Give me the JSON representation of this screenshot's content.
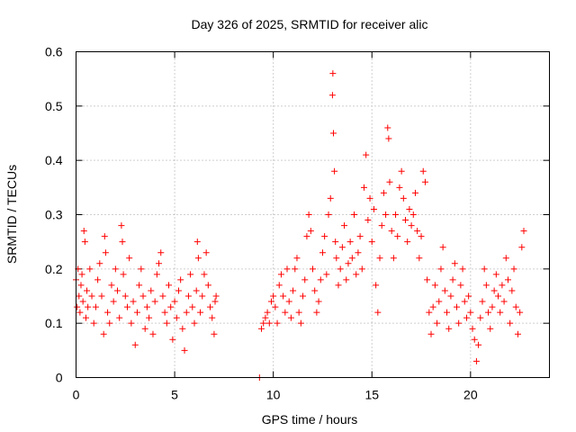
{
  "chart_data": {
    "type": "scatter",
    "title": "Day 326 of 2025, SRMTID for receiver alic",
    "xlabel": "GPS time / hours",
    "ylabel": "SRMTID / TECUs",
    "xlim": [
      0,
      24
    ],
    "ylim": [
      0,
      0.6
    ],
    "xticks": [
      0,
      5,
      10,
      15,
      20
    ],
    "yticks": [
      0,
      0.1,
      0.2,
      0.3,
      0.4,
      0.5,
      0.6
    ],
    "xtick_labels": [
      "0",
      "5",
      "10",
      "15",
      "20"
    ],
    "ytick_labels": [
      "0",
      "0.1",
      "0.2",
      "0.3",
      "0.4",
      "0.5",
      "0.6"
    ],
    "grid": true,
    "marker": "plus",
    "color": "#ff0000",
    "series": [
      {
        "name": "SRMTID",
        "points": [
          [
            0.0,
            0.18
          ],
          [
            0.05,
            0.13
          ],
          [
            0.1,
            0.2
          ],
          [
            0.15,
            0.15
          ],
          [
            0.2,
            0.12
          ],
          [
            0.25,
            0.17
          ],
          [
            0.3,
            0.19
          ],
          [
            0.35,
            0.14
          ],
          [
            0.4,
            0.27
          ],
          [
            0.45,
            0.25
          ],
          [
            0.5,
            0.11
          ],
          [
            0.55,
            0.16
          ],
          [
            0.6,
            0.13
          ],
          [
            0.7,
            0.2
          ],
          [
            0.8,
            0.15
          ],
          [
            0.9,
            0.1
          ],
          [
            1.0,
            0.13
          ],
          [
            1.1,
            0.18
          ],
          [
            1.2,
            0.21
          ],
          [
            1.3,
            0.15
          ],
          [
            1.4,
            0.08
          ],
          [
            1.45,
            0.26
          ],
          [
            1.5,
            0.23
          ],
          [
            1.6,
            0.12
          ],
          [
            1.7,
            0.1
          ],
          [
            1.8,
            0.17
          ],
          [
            1.9,
            0.14
          ],
          [
            2.0,
            0.2
          ],
          [
            2.1,
            0.16
          ],
          [
            2.2,
            0.11
          ],
          [
            2.3,
            0.28
          ],
          [
            2.35,
            0.25
          ],
          [
            2.4,
            0.19
          ],
          [
            2.5,
            0.15
          ],
          [
            2.6,
            0.13
          ],
          [
            2.7,
            0.22
          ],
          [
            2.8,
            0.1
          ],
          [
            2.9,
            0.14
          ],
          [
            3.0,
            0.06
          ],
          [
            3.1,
            0.12
          ],
          [
            3.2,
            0.17
          ],
          [
            3.3,
            0.2
          ],
          [
            3.4,
            0.15
          ],
          [
            3.5,
            0.09
          ],
          [
            3.6,
            0.13
          ],
          [
            3.7,
            0.11
          ],
          [
            3.8,
            0.16
          ],
          [
            3.9,
            0.08
          ],
          [
            4.0,
            0.14
          ],
          [
            4.1,
            0.19
          ],
          [
            4.2,
            0.21
          ],
          [
            4.3,
            0.23
          ],
          [
            4.4,
            0.15
          ],
          [
            4.5,
            0.12
          ],
          [
            4.6,
            0.1
          ],
          [
            4.7,
            0.17
          ],
          [
            4.8,
            0.13
          ],
          [
            4.9,
            0.07
          ],
          [
            5.0,
            0.14
          ],
          [
            5.1,
            0.11
          ],
          [
            5.2,
            0.16
          ],
          [
            5.3,
            0.18
          ],
          [
            5.4,
            0.09
          ],
          [
            5.5,
            0.05
          ],
          [
            5.6,
            0.12
          ],
          [
            5.7,
            0.15
          ],
          [
            5.8,
            0.19
          ],
          [
            5.9,
            0.13
          ],
          [
            6.0,
            0.1
          ],
          [
            6.1,
            0.16
          ],
          [
            6.15,
            0.25
          ],
          [
            6.2,
            0.22
          ],
          [
            6.3,
            0.12
          ],
          [
            6.4,
            0.15
          ],
          [
            6.5,
            0.19
          ],
          [
            6.6,
            0.23
          ],
          [
            6.7,
            0.17
          ],
          [
            6.8,
            0.13
          ],
          [
            6.9,
            0.11
          ],
          [
            7.0,
            0.08
          ],
          [
            7.05,
            0.14
          ],
          [
            7.1,
            0.15
          ],
          [
            9.3,
            0.0
          ],
          [
            9.4,
            0.09
          ],
          [
            9.5,
            0.1
          ],
          [
            9.6,
            0.11
          ],
          [
            9.7,
            0.12
          ],
          [
            9.8,
            0.1
          ],
          [
            9.9,
            0.14
          ],
          [
            10.0,
            0.15
          ],
          [
            10.1,
            0.13
          ],
          [
            10.2,
            0.1
          ],
          [
            10.3,
            0.17
          ],
          [
            10.4,
            0.19
          ],
          [
            10.5,
            0.15
          ],
          [
            10.6,
            0.12
          ],
          [
            10.7,
            0.2
          ],
          [
            10.8,
            0.14
          ],
          [
            10.9,
            0.11
          ],
          [
            11.0,
            0.16
          ],
          [
            11.1,
            0.2
          ],
          [
            11.2,
            0.22
          ],
          [
            11.3,
            0.12
          ],
          [
            11.4,
            0.1
          ],
          [
            11.5,
            0.15
          ],
          [
            11.6,
            0.18
          ],
          [
            11.7,
            0.26
          ],
          [
            11.8,
            0.3
          ],
          [
            11.9,
            0.27
          ],
          [
            12.0,
            0.2
          ],
          [
            12.1,
            0.16
          ],
          [
            12.2,
            0.12
          ],
          [
            12.3,
            0.14
          ],
          [
            12.4,
            0.18
          ],
          [
            12.5,
            0.23
          ],
          [
            12.6,
            0.26
          ],
          [
            12.7,
            0.19
          ],
          [
            12.8,
            0.3
          ],
          [
            12.9,
            0.33
          ],
          [
            13.0,
            0.52
          ],
          [
            13.02,
            0.56
          ],
          [
            13.05,
            0.45
          ],
          [
            13.1,
            0.38
          ],
          [
            13.15,
            0.25
          ],
          [
            13.2,
            0.22
          ],
          [
            13.3,
            0.17
          ],
          [
            13.4,
            0.2
          ],
          [
            13.5,
            0.24
          ],
          [
            13.6,
            0.28
          ],
          [
            13.7,
            0.18
          ],
          [
            13.8,
            0.21
          ],
          [
            13.9,
            0.25
          ],
          [
            14.0,
            0.22
          ],
          [
            14.1,
            0.3
          ],
          [
            14.2,
            0.19
          ],
          [
            14.3,
            0.23
          ],
          [
            14.4,
            0.26
          ],
          [
            14.5,
            0.2
          ],
          [
            14.6,
            0.35
          ],
          [
            14.7,
            0.41
          ],
          [
            14.8,
            0.29
          ],
          [
            14.9,
            0.33
          ],
          [
            15.0,
            0.25
          ],
          [
            15.1,
            0.31
          ],
          [
            15.2,
            0.17
          ],
          [
            15.3,
            0.12
          ],
          [
            15.4,
            0.22
          ],
          [
            15.5,
            0.28
          ],
          [
            15.6,
            0.34
          ],
          [
            15.7,
            0.3
          ],
          [
            15.8,
            0.46
          ],
          [
            15.85,
            0.44
          ],
          [
            15.9,
            0.36
          ],
          [
            16.0,
            0.27
          ],
          [
            16.1,
            0.22
          ],
          [
            16.2,
            0.3
          ],
          [
            16.3,
            0.26
          ],
          [
            16.4,
            0.35
          ],
          [
            16.5,
            0.38
          ],
          [
            16.6,
            0.33
          ],
          [
            16.7,
            0.29
          ],
          [
            16.8,
            0.25
          ],
          [
            16.9,
            0.31
          ],
          [
            17.0,
            0.28
          ],
          [
            17.1,
            0.3
          ],
          [
            17.2,
            0.34
          ],
          [
            17.3,
            0.27
          ],
          [
            17.4,
            0.22
          ],
          [
            17.5,
            0.26
          ],
          [
            17.6,
            0.38
          ],
          [
            17.7,
            0.36
          ],
          [
            17.8,
            0.18
          ],
          [
            17.9,
            0.12
          ],
          [
            18.0,
            0.08
          ],
          [
            18.1,
            0.13
          ],
          [
            18.2,
            0.17
          ],
          [
            18.3,
            0.1
          ],
          [
            18.4,
            0.14
          ],
          [
            18.5,
            0.2
          ],
          [
            18.6,
            0.24
          ],
          [
            18.7,
            0.16
          ],
          [
            18.8,
            0.12
          ],
          [
            18.9,
            0.09
          ],
          [
            19.0,
            0.15
          ],
          [
            19.1,
            0.18
          ],
          [
            19.2,
            0.21
          ],
          [
            19.3,
            0.13
          ],
          [
            19.4,
            0.1
          ],
          [
            19.5,
            0.17
          ],
          [
            19.6,
            0.2
          ],
          [
            19.7,
            0.14
          ],
          [
            19.8,
            0.11
          ],
          [
            19.9,
            0.15
          ],
          [
            20.0,
            0.12
          ],
          [
            20.1,
            0.09
          ],
          [
            20.2,
            0.07
          ],
          [
            20.3,
            0.03
          ],
          [
            20.4,
            0.06
          ],
          [
            20.5,
            0.11
          ],
          [
            20.6,
            0.14
          ],
          [
            20.7,
            0.2
          ],
          [
            20.8,
            0.17
          ],
          [
            20.9,
            0.12
          ],
          [
            21.0,
            0.09
          ],
          [
            21.1,
            0.13
          ],
          [
            21.2,
            0.16
          ],
          [
            21.3,
            0.19
          ],
          [
            21.4,
            0.15
          ],
          [
            21.5,
            0.12
          ],
          [
            21.6,
            0.17
          ],
          [
            21.7,
            0.14
          ],
          [
            21.8,
            0.22
          ],
          [
            21.9,
            0.18
          ],
          [
            22.0,
            0.1
          ],
          [
            22.1,
            0.16
          ],
          [
            22.2,
            0.2
          ],
          [
            22.3,
            0.13
          ],
          [
            22.4,
            0.08
          ],
          [
            22.5,
            0.12
          ],
          [
            22.6,
            0.24
          ],
          [
            22.7,
            0.27
          ]
        ]
      }
    ]
  }
}
